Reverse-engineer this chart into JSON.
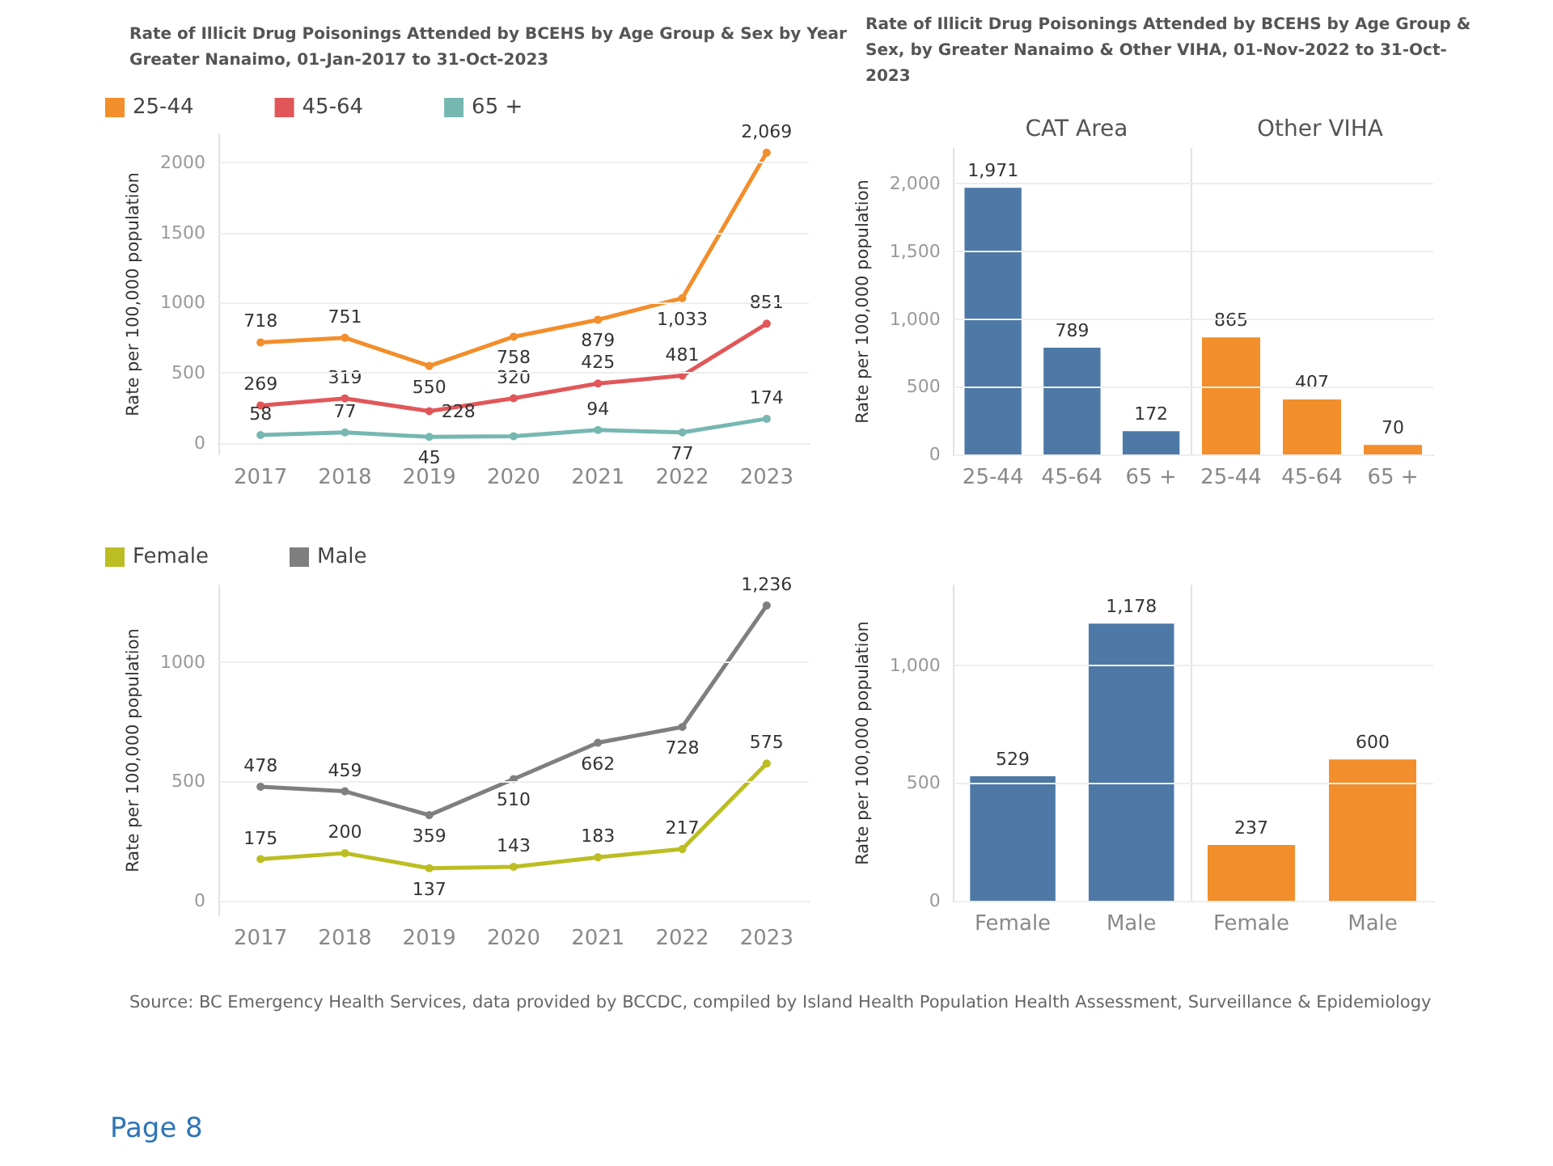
{
  "chart_data": [
    {
      "type": "line",
      "title": "Rate of Illicit Drug Poisonings Attended by BCEHS by Age Group & Sex by Year",
      "subtitle": "Greater Nanaimo, 01-Jan-2017 to 31-Oct-2023",
      "ylabel": "Rate per 100,000 population",
      "categories": [
        "2017",
        "2018",
        "2019",
        "2020",
        "2021",
        "2022",
        "2023"
      ],
      "series": [
        {
          "name": "25-44",
          "color": "#f28e2b",
          "values": [
            718,
            751,
            550,
            758,
            879,
            1033,
            2069
          ],
          "value_labels": [
            "718",
            "751",
            "550",
            "758",
            "879",
            "1,033",
            "2,069"
          ]
        },
        {
          "name": "45-64",
          "color": "#e15759",
          "values": [
            269,
            319,
            228,
            320,
            425,
            481,
            851
          ],
          "value_labels": [
            "269",
            "319",
            "228",
            "320",
            "425",
            "481",
            "851"
          ]
        },
        {
          "name": "65 +",
          "color": "#76b7b2",
          "values": [
            58,
            77,
            45,
            50,
            94,
            77,
            174
          ],
          "value_labels": [
            "58",
            "77",
            "45",
            null,
            "94",
            "77",
            "174"
          ]
        }
      ],
      "ylim": [
        -80,
        2200
      ],
      "yticks": [
        0,
        500,
        1000,
        1500,
        2000
      ],
      "grid": "y",
      "legend": "top left",
      "marker": "circle"
    },
    {
      "type": "bar",
      "title": "Rate of Illicit Drug Poisonings Attended by BCEHS by Age Group  & Sex, by Greater Nanaimo  & Other VIHA, 01-Nov-2022 to 31-Oct-2023",
      "subtitle": "CAT Area",
      "ylabel": "Rate per 100,000 population",
      "categories": [
        "25-44",
        "45-64",
        "65 +"
      ],
      "series": [
        {
          "color": "#4e79a7",
          "values": [
            1971,
            789,
            172
          ],
          "value_labels": [
            "1,971",
            "789",
            "172"
          ]
        }
      ],
      "ylim": [
        0,
        2260
      ],
      "yticks": [
        0,
        {
          "value": 500,
          "label": "500"
        },
        {
          "value": 1000,
          "label": "1,000"
        },
        {
          "value": 1500,
          "label": "1,500"
        },
        {
          "value": 2000,
          "label": "2,000"
        }
      ],
      "grid": "y",
      "legend": false
    },
    {
      "type": "bar",
      "subtitle": "Other VIHA",
      "categories": [
        "25-44",
        "45-64",
        "65 +"
      ],
      "series": [
        {
          "color": "#f28e2b",
          "values": [
            865,
            407,
            70
          ],
          "value_labels": [
            "865",
            "407",
            "70"
          ]
        }
      ],
      "ylim": [
        0,
        2260
      ],
      "yticks": [
        0,
        500,
        1000,
        1500,
        2000
      ],
      "grid": "y",
      "legend": false,
      "tick_labels": "x"
    },
    {
      "type": "line",
      "ylabel": "Rate per 100,000 population",
      "categories": [
        "2017",
        "2018",
        "2019",
        "2020",
        "2021",
        "2022",
        "2023"
      ],
      "series": [
        {
          "name": "Female",
          "color": "#bcbd22",
          "values": [
            175,
            200,
            137,
            143,
            183,
            217,
            575
          ],
          "value_labels": [
            "175",
            "200",
            "137",
            "143",
            "183",
            "217",
            "575"
          ]
        },
        {
          "name": "Male",
          "color": "#7f7f7f",
          "values": [
            478,
            459,
            359,
            510,
            662,
            728,
            1236
          ],
          "value_labels": [
            "478",
            "459",
            "359",
            "510",
            "662",
            "728",
            "1,236"
          ]
        }
      ],
      "ylim": [
        -60,
        1320
      ],
      "yticks": [
        0,
        500,
        1000
      ],
      "grid": "y",
      "legend": "top left",
      "marker": "circle",
      "annotations": [
        "Source: BC Emergency Health Services, data provided by BCCDC, compiled by Island Health Population Health Assessment, Surveillance & Epidemiology",
        "Page 8"
      ]
    },
    {
      "type": "bar",
      "ylabel": "Rate per 100,000 population",
      "categories": [
        "Female",
        "Male"
      ],
      "series": [
        {
          "color": "#4e79a7",
          "values": [
            529,
            1178
          ],
          "value_labels": [
            "529",
            "1,178"
          ]
        }
      ],
      "ylim": [
        0,
        1340
      ],
      "yticks": [
        0,
        {
          "value": 500,
          "label": "500"
        },
        {
          "value": 1000,
          "label": "1,000"
        }
      ],
      "grid": "y",
      "legend": false
    },
    {
      "type": "bar",
      "categories": [
        "Female",
        "Male"
      ],
      "series": [
        {
          "color": "#f28e2b",
          "values": [
            237,
            600
          ],
          "value_labels": [
            "237",
            "600"
          ]
        }
      ],
      "ylim": [
        0,
        1340
      ],
      "yticks": [
        0,
        500,
        1000
      ],
      "grid": "y",
      "legend": false,
      "tick_labels": "x"
    }
  ]
}
